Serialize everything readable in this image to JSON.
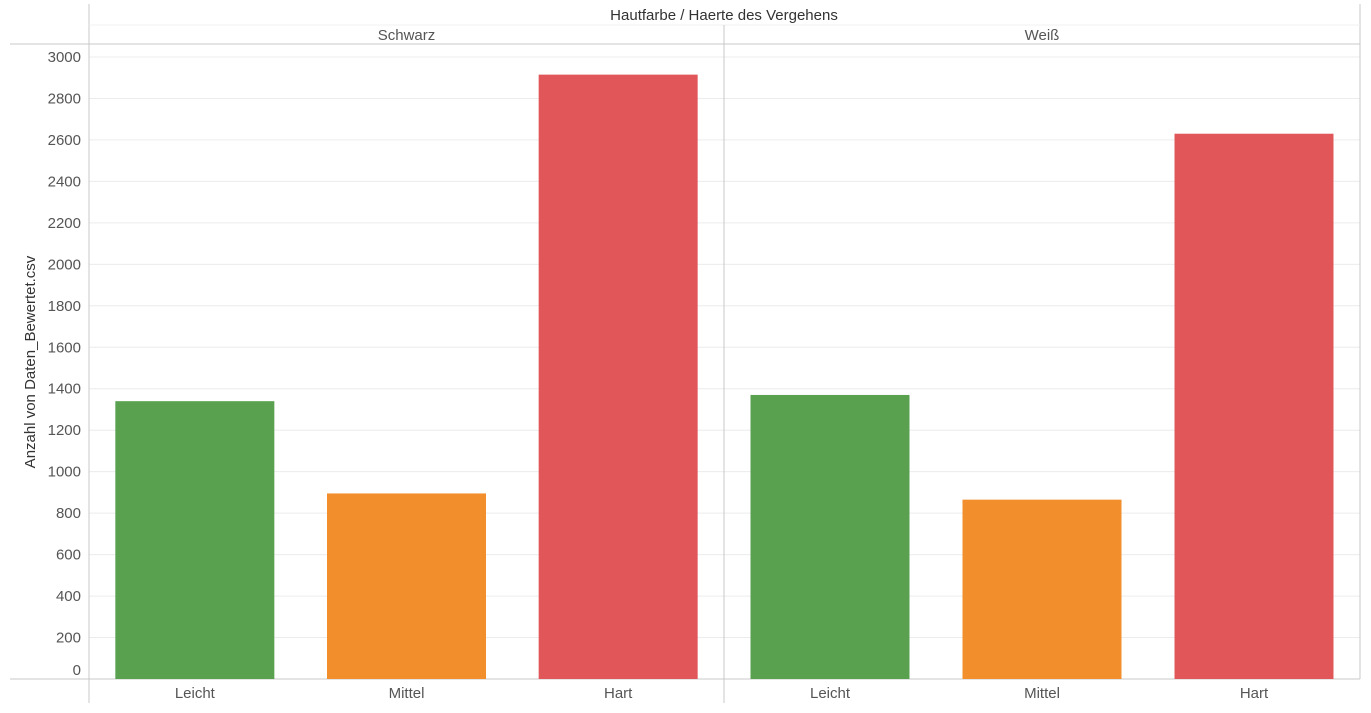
{
  "chart_data": {
    "type": "bar",
    "title": "Hautfarbe / Haerte des Vergehens",
    "ylabel": "Anzahl von Daten_Bewertet.csv",
    "xlabel": "",
    "ylim": [
      0,
      3000
    ],
    "yticks": [
      0,
      200,
      400,
      600,
      800,
      1000,
      1200,
      1400,
      1600,
      1800,
      2000,
      2200,
      2400,
      2600,
      2800,
      3000
    ],
    "grid": true,
    "categories": [
      "Leicht",
      "Mittel",
      "Hart"
    ],
    "category_colors": [
      "#59a14f",
      "#f28e2b",
      "#e15759"
    ],
    "panels": [
      {
        "name": "Schwarz",
        "values": [
          1340,
          895,
          2915
        ]
      },
      {
        "name": "Weiß",
        "values": [
          1370,
          865,
          2630
        ]
      }
    ]
  }
}
